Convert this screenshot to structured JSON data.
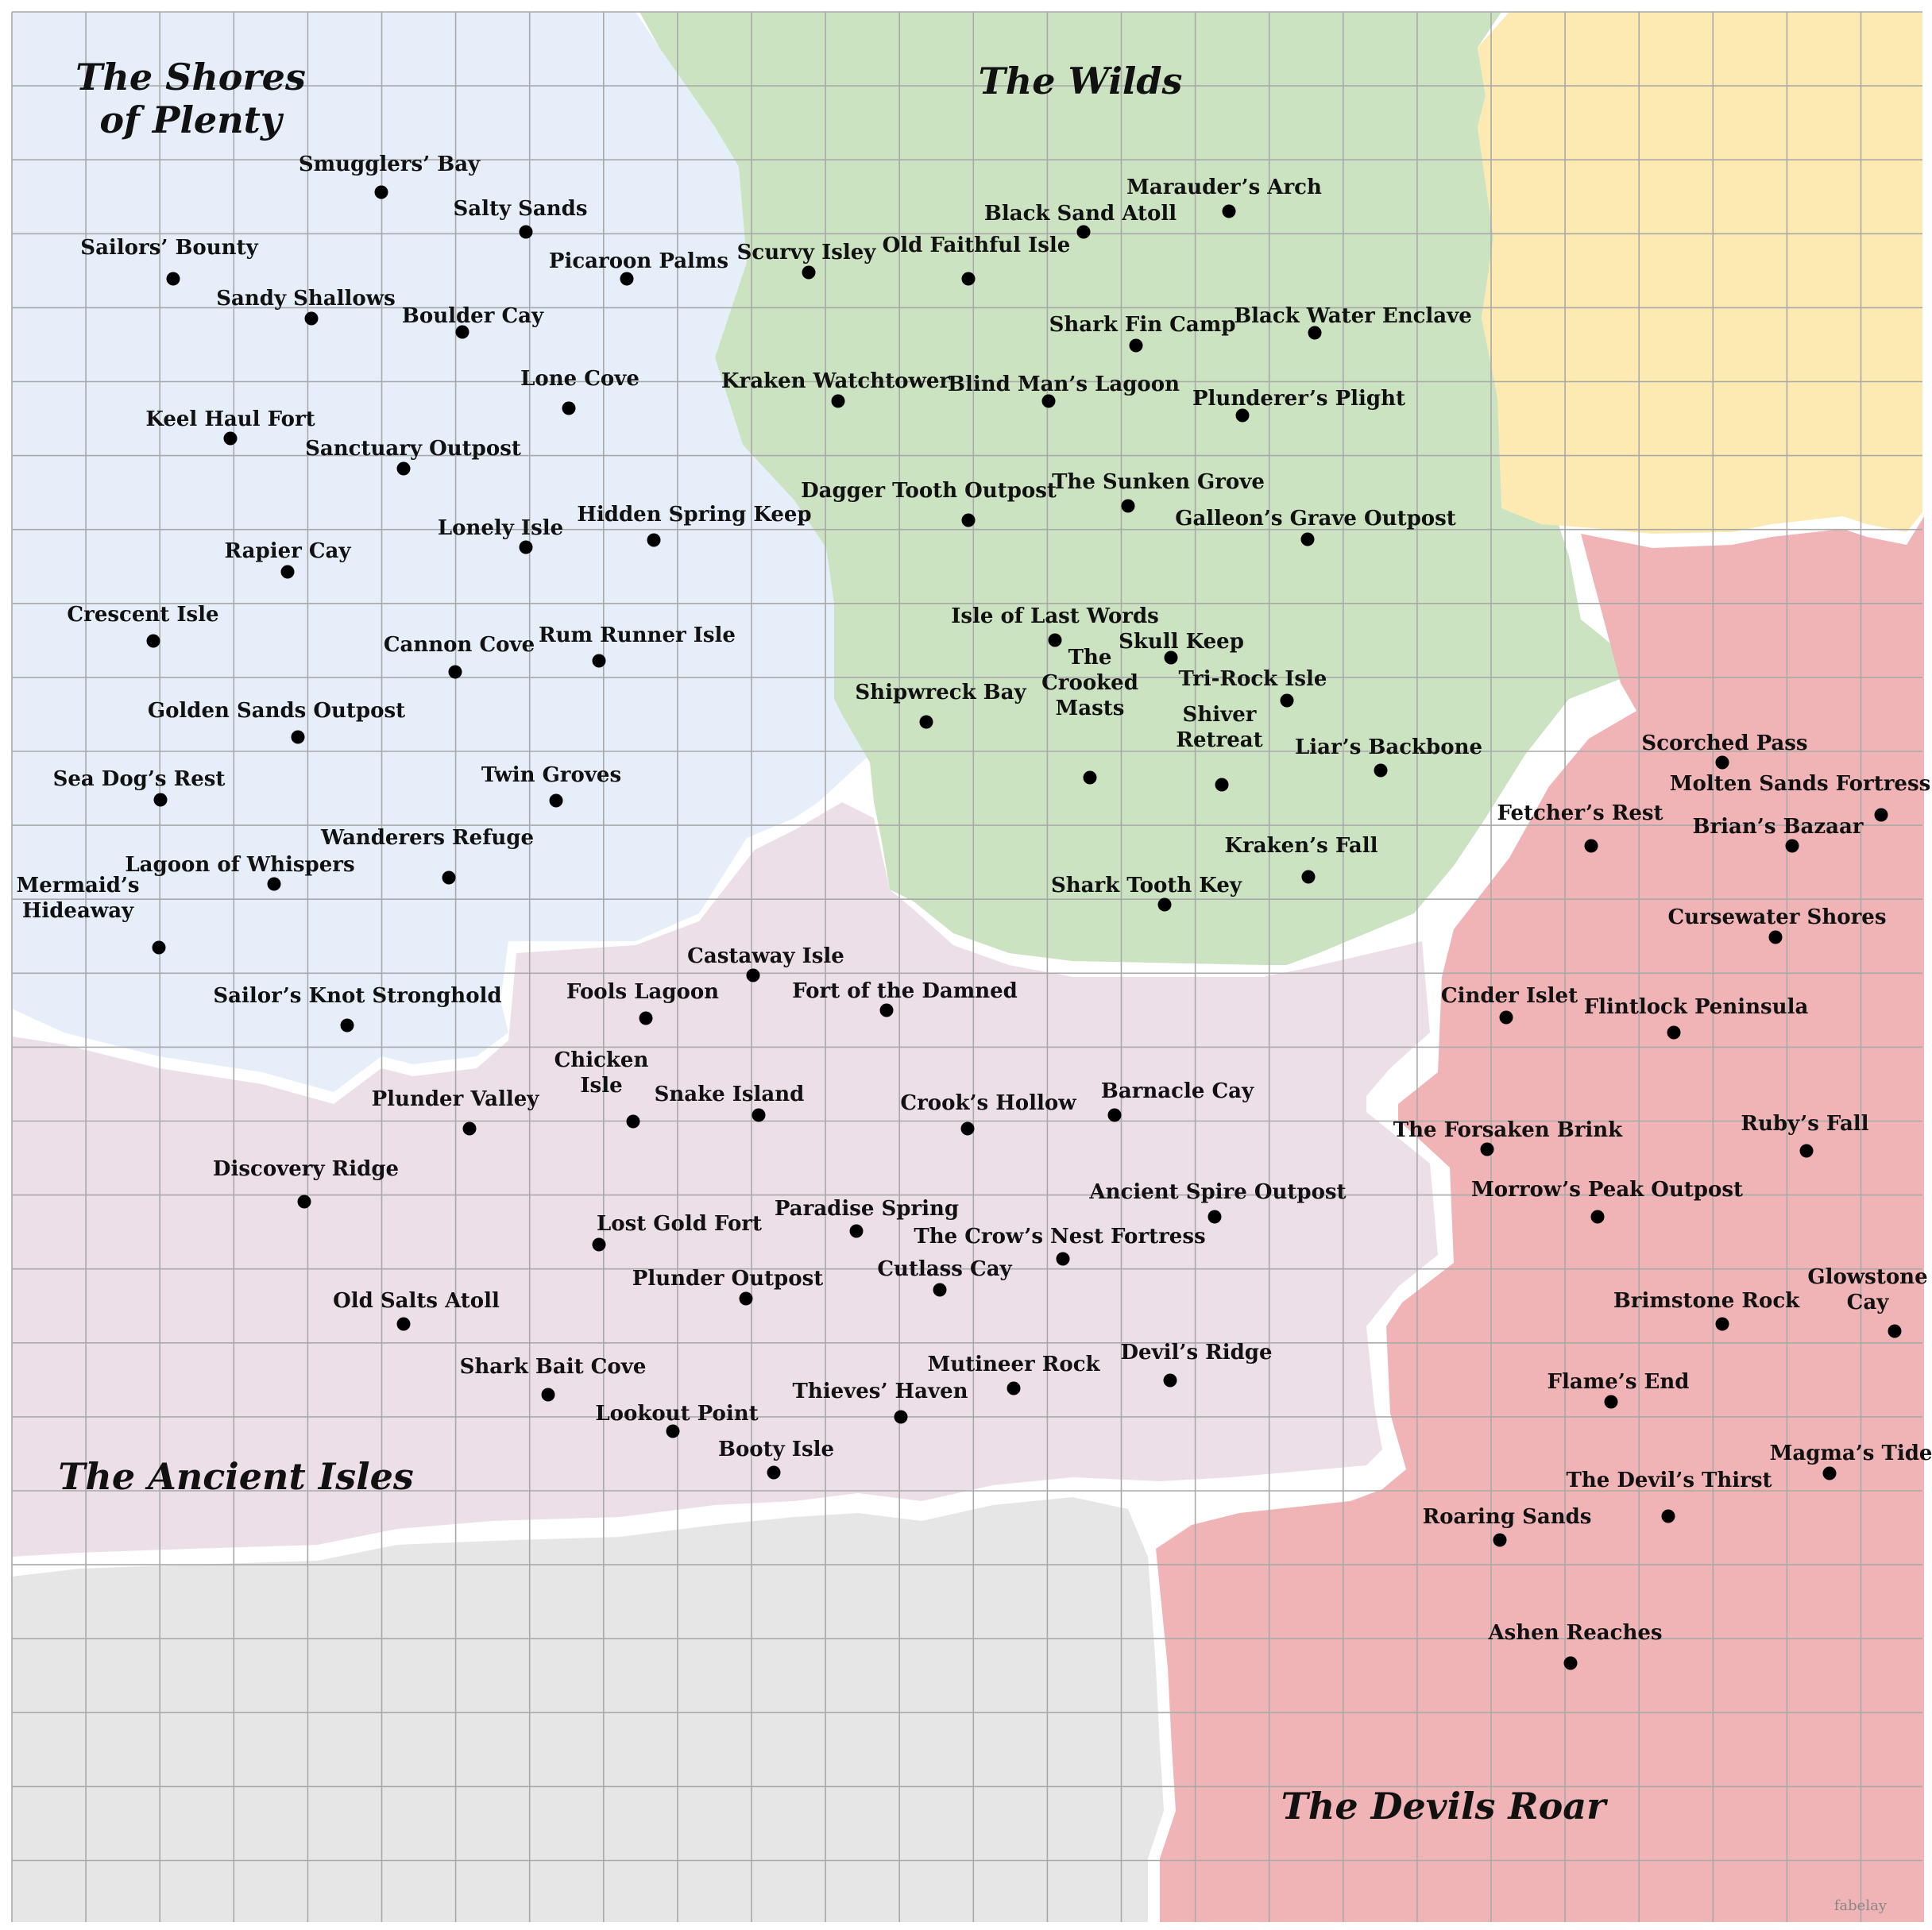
{
  "map": {
    "colors": {
      "shores_of_plenty": "#e6eefa",
      "wilds": "#cce3c1",
      "ancient_isles": "#eddfe8",
      "devils_roar": "#f0b4b7",
      "uncharted_north": "#fdeab2",
      "uncharted_south": "#e6e6e6",
      "grid": "#a9a9a9",
      "dot": "#000000"
    },
    "credit": "fabelay",
    "regions": [
      {
        "key": "shores",
        "lines": [
          "The Shores",
          "of Plenty"
        ]
      },
      {
        "key": "wilds",
        "lines": [
          "The Wilds"
        ]
      },
      {
        "key": "ancient",
        "lines": [
          "The Ancient Isles"
        ]
      },
      {
        "key": "devils",
        "lines": [
          "The Devils Roar"
        ]
      }
    ],
    "locations": [
      {
        "lines": [
          "Smugglers’ Bay"
        ]
      },
      {
        "lines": [
          "Salty Sands"
        ]
      },
      {
        "lines": [
          "Sailors’ Bounty"
        ]
      },
      {
        "lines": [
          "Picaroon Palms"
        ]
      },
      {
        "lines": [
          "Sandy Shallows"
        ]
      },
      {
        "lines": [
          "Boulder Cay"
        ]
      },
      {
        "lines": [
          "Lone Cove"
        ]
      },
      {
        "lines": [
          "Keel Haul Fort"
        ]
      },
      {
        "lines": [
          "Sanctuary Outpost"
        ]
      },
      {
        "lines": [
          "Lonely Isle"
        ]
      },
      {
        "lines": [
          "Hidden Spring Keep"
        ]
      },
      {
        "lines": [
          "Rapier Cay"
        ]
      },
      {
        "lines": [
          "Crescent Isle"
        ]
      },
      {
        "lines": [
          "Cannon Cove"
        ]
      },
      {
        "lines": [
          "Rum Runner Isle"
        ]
      },
      {
        "lines": [
          "Golden Sands Outpost"
        ]
      },
      {
        "lines": [
          "Sea Dog’s Rest"
        ]
      },
      {
        "lines": [
          "Twin Groves"
        ]
      },
      {
        "lines": [
          "Wanderers Refuge"
        ]
      },
      {
        "lines": [
          "Lagoon of Whispers"
        ]
      },
      {
        "lines": [
          "Mermaid’s",
          "Hideaway"
        ]
      },
      {
        "lines": [
          "Sailor’s Knot Stronghold"
        ]
      },
      {
        "lines": [
          "Marauder’s Arch"
        ]
      },
      {
        "lines": [
          "Black Sand Atoll"
        ]
      },
      {
        "lines": [
          "Scurvy Isley"
        ]
      },
      {
        "lines": [
          "Old Faithful Isle"
        ]
      },
      {
        "lines": [
          "Shark Fin Camp"
        ]
      },
      {
        "lines": [
          "Black Water Enclave"
        ]
      },
      {
        "lines": [
          "Kraken Watchtower"
        ]
      },
      {
        "lines": [
          "Blind Man’s Lagoon"
        ]
      },
      {
        "lines": [
          "Plunderer’s Plight"
        ]
      },
      {
        "lines": [
          "Dagger Tooth Outpost"
        ]
      },
      {
        "lines": [
          "The Sunken Grove"
        ]
      },
      {
        "lines": [
          "Galleon’s Grave Outpost"
        ]
      },
      {
        "lines": [
          "Isle of Last Words"
        ]
      },
      {
        "lines": [
          "Skull Keep"
        ]
      },
      {
        "lines": [
          "Tri-Rock Isle"
        ]
      },
      {
        "lines": [
          "Shipwreck Bay"
        ]
      },
      {
        "lines": [
          "The",
          "Crooked",
          "Masts"
        ]
      },
      {
        "lines": [
          "Shiver",
          "Retreat"
        ]
      },
      {
        "lines": [
          "Liar’s Backbone"
        ]
      },
      {
        "lines": [
          "Kraken’s Fall"
        ]
      },
      {
        "lines": [
          "Shark Tooth Key"
        ]
      },
      {
        "lines": [
          "Castaway Isle"
        ]
      },
      {
        "lines": [
          "Fools Lagoon"
        ]
      },
      {
        "lines": [
          "Fort of the Damned"
        ]
      },
      {
        "lines": [
          "Plunder Valley"
        ]
      },
      {
        "lines": [
          "Chicken",
          "Isle"
        ]
      },
      {
        "lines": [
          "Snake Island"
        ]
      },
      {
        "lines": [
          "Crook’s Hollow"
        ]
      },
      {
        "lines": [
          "Barnacle Cay"
        ]
      },
      {
        "lines": [
          "Discovery Ridge"
        ]
      },
      {
        "lines": [
          "Ancient Spire Outpost"
        ]
      },
      {
        "lines": [
          "Paradise Spring"
        ]
      },
      {
        "lines": [
          "Lost Gold Fort"
        ]
      },
      {
        "lines": [
          "The Crow’s Nest Fortress"
        ]
      },
      {
        "lines": [
          "Cutlass Cay"
        ]
      },
      {
        "lines": [
          "Plunder Outpost"
        ]
      },
      {
        "lines": [
          "Old Salts Atoll"
        ]
      },
      {
        "lines": [
          "Shark Bait Cove"
        ]
      },
      {
        "lines": [
          "Mutineer Rock"
        ]
      },
      {
        "lines": [
          "Devil’s Ridge"
        ]
      },
      {
        "lines": [
          "Thieves’ Haven"
        ]
      },
      {
        "lines": [
          "Lookout Point"
        ]
      },
      {
        "lines": [
          "Booty Isle"
        ]
      },
      {
        "lines": [
          "Scorched Pass"
        ]
      },
      {
        "lines": [
          "Molten Sands Fortress"
        ]
      },
      {
        "lines": [
          "Fetcher’s Rest"
        ]
      },
      {
        "lines": [
          "Brian’s Bazaar"
        ]
      },
      {
        "lines": [
          "Cursewater Shores"
        ]
      },
      {
        "lines": [
          "Cinder Islet"
        ]
      },
      {
        "lines": [
          "Flintlock Peninsula"
        ]
      },
      {
        "lines": [
          "The Forsaken Brink"
        ]
      },
      {
        "lines": [
          "Ruby’s Fall"
        ]
      },
      {
        "lines": [
          "Morrow’s Peak Outpost"
        ]
      },
      {
        "lines": [
          "Brimstone Rock"
        ]
      },
      {
        "lines": [
          "Glowstone",
          "Cay"
        ]
      },
      {
        "lines": [
          "Flame’s End"
        ]
      },
      {
        "lines": [
          "Magma’s Tide"
        ]
      },
      {
        "lines": [
          "The Devil’s Thirst"
        ]
      },
      {
        "lines": [
          "Roaring Sands"
        ]
      },
      {
        "lines": [
          "Ashen Reaches"
        ]
      }
    ]
  }
}
